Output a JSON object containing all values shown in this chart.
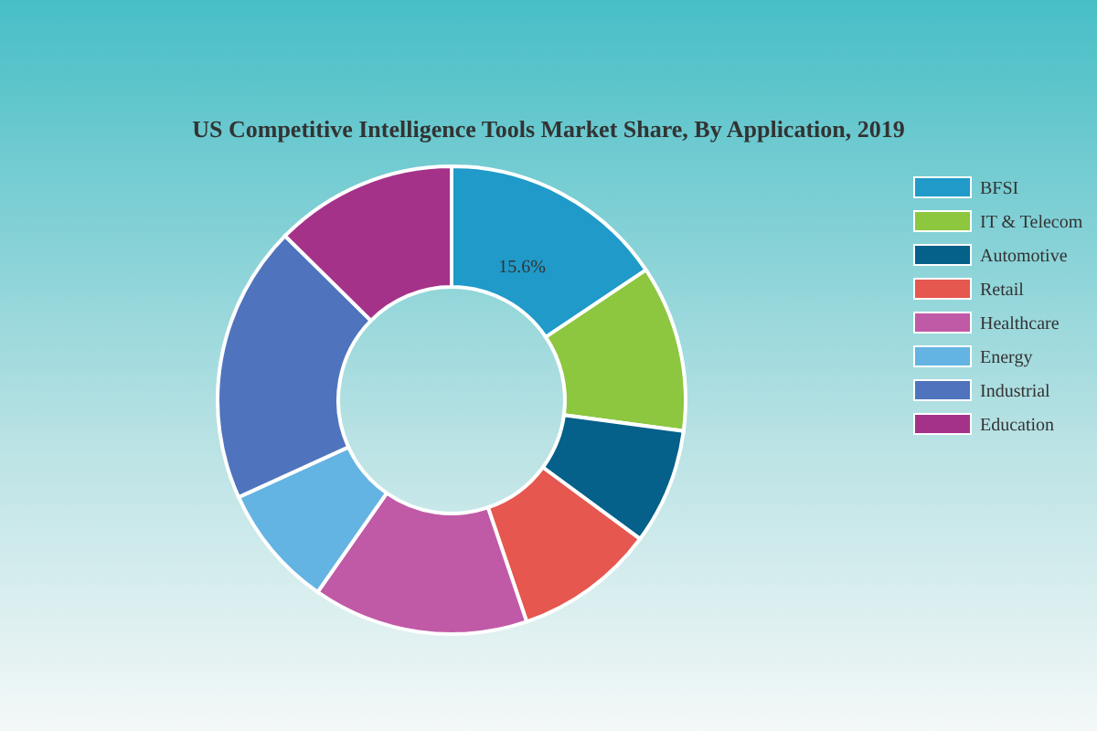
{
  "chart_data": {
    "type": "donut",
    "title": "US Competitive Intelligence Tools Market Share, By Application, 2019",
    "categories": [
      "BFSI",
      "IT & Telecom",
      "Automotive",
      "Retail",
      "Healthcare",
      "Energy",
      "Industrial",
      "Education"
    ],
    "values": [
      15.6,
      11.5,
      8,
      9.7,
      14.9,
      8.5,
      19.2,
      12.6
    ],
    "colors": [
      "#1f9ac9",
      "#8dc63f",
      "#05608a",
      "#e5574f",
      "#c05aa6",
      "#63b3e3",
      "#4f74bd",
      "#a53289"
    ],
    "value_labels": [
      "15.6%",
      null,
      null,
      null,
      null,
      null,
      null,
      null
    ],
    "legend": "right"
  }
}
